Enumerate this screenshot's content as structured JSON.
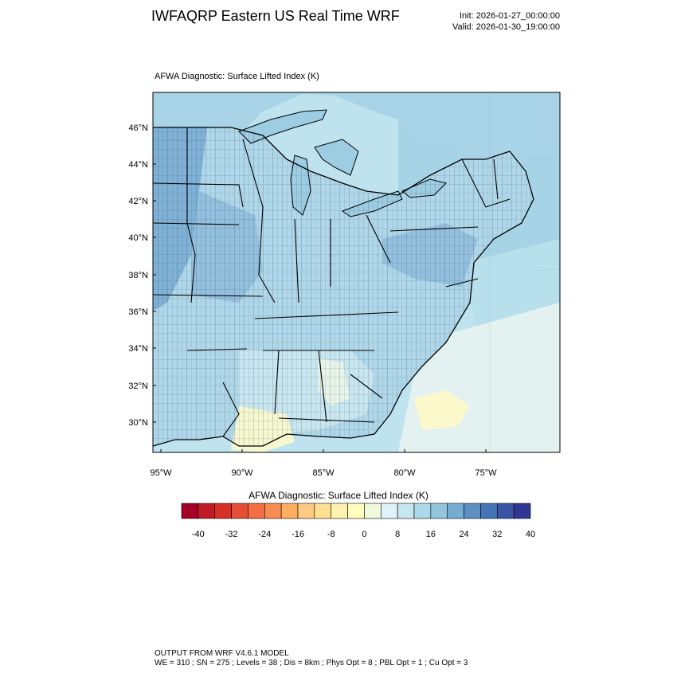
{
  "header": {
    "title": "IWFAQRP Eastern US Real Time WRF",
    "init": "Init: 2026-01-27_00:00:00",
    "valid": "Valid: 2026-01-30_19:00:00"
  },
  "map": {
    "subtitle": "AFWA Diagnostic: Surface Lifted Index   (K)",
    "lat_labels": [
      "46°N",
      "44°N",
      "42°N",
      "40°N",
      "38°N",
      "36°N",
      "34°N",
      "32°N",
      "30°N"
    ],
    "lon_labels": [
      "95°W",
      "90°W",
      "85°W",
      "80°W",
      "75°W"
    ]
  },
  "colorbar": {
    "title": "AFWA Diagnostic: Surface Lifted Index  (K)",
    "colors": [
      "#a50026",
      "#c01a27",
      "#d73027",
      "#e54e35",
      "#f46d43",
      "#f88d52",
      "#fdae61",
      "#fec980",
      "#fee090",
      "#fef2b0",
      "#ffffbf",
      "#f0f9dc",
      "#e0f3f8",
      "#c7e6f0",
      "#abd9e9",
      "#92c5de",
      "#74add1",
      "#5d8fc2",
      "#4575b4",
      "#3a54a4",
      "#313695"
    ],
    "tick_labels": [
      "-40",
      "-32",
      "-24",
      "-16",
      "-8",
      "0",
      "8",
      "16",
      "24",
      "32",
      "40"
    ]
  },
  "footer": {
    "line1": "OUTPUT FROM WRF V4.6.1 MODEL",
    "line2": "WE = 310 ; SN = 275 ; Levels = 38 ; Dis = 8km ; Phys Opt = 8 ; PBL Opt = 1 ; Cu Opt = 3"
  }
}
